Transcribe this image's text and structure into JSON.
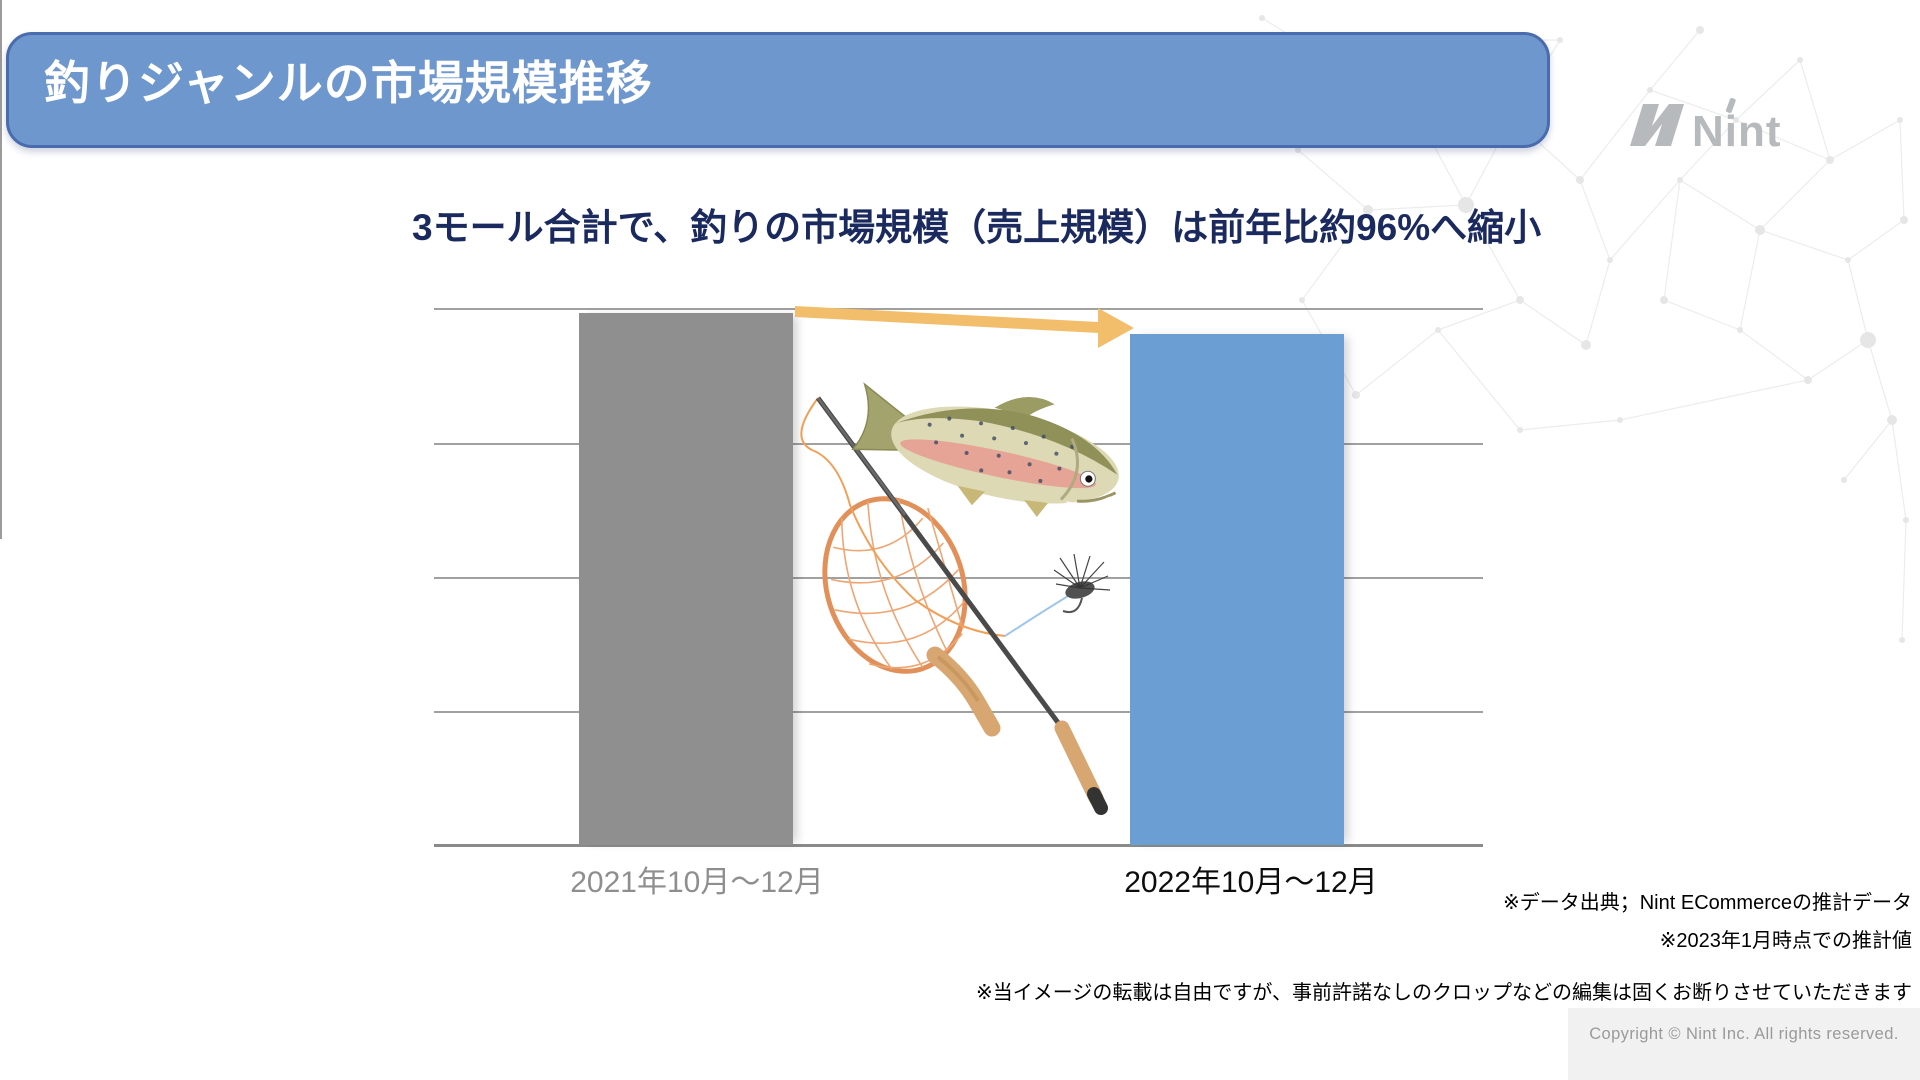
{
  "header": {
    "title": "釣りジャンルの市場規模推移",
    "bar_fill": "#6E97CD",
    "bar_border": "#4A6BAD",
    "title_color": "#FFFFFF"
  },
  "logo": {
    "text": "Nint",
    "color": "#B7BABD"
  },
  "subtitle": {
    "text": "3モール合計で、釣りの市場規模（売上規模）は前年比約96%へ縮小",
    "color": "#1B2A5E"
  },
  "chart_data": {
    "type": "bar",
    "title": "",
    "categories": [
      "2021年10月〜12月",
      "2022年10月〜12月"
    ],
    "values": [
      100,
      96
    ],
    "value_note": "relative sales-scale index read from bar heights; 2022 is approx 96% of 2021",
    "ylabel": "",
    "xlabel": "",
    "ylim": [
      0,
      100.8
    ],
    "grid_on": true,
    "gridline_count": 4,
    "bar_colors": [
      "#8F8F8F",
      "#6B9FD4"
    ],
    "category_label_colors": [
      "#8E8E8E",
      "#0D0D0D"
    ],
    "legend": "none",
    "annotations": [
      {
        "type": "arrow",
        "from_bar": "2021年10月〜12月",
        "to_bar": "2022年10月〜12月",
        "color": "#F2BE6B",
        "meaning": "decline to approx 96% year over year"
      }
    ]
  },
  "icons": {
    "nint-logo-mark-icon": "angular-N-mark",
    "fish-illustration": "trout",
    "landing-net-illustration": "orange mesh net with wooden handle",
    "fishing-rod-illustration": "fly rod with cork grip and line",
    "fly-lure-illustration": "black hackle fly",
    "decrease-arrow-icon": "amber right arrow sloping down"
  },
  "footnotes": {
    "items": [
      "※データ出典；Nint ECommerceの推計データ",
      "※2023年1月時点での推計値",
      "※当イメージの転載は自由ですが、事前許諾なしのクロップなどの編集は固くお断りさせていただきます"
    ]
  },
  "copyright": {
    "text": "Copyright © Nint Inc. All rights reserved."
  }
}
